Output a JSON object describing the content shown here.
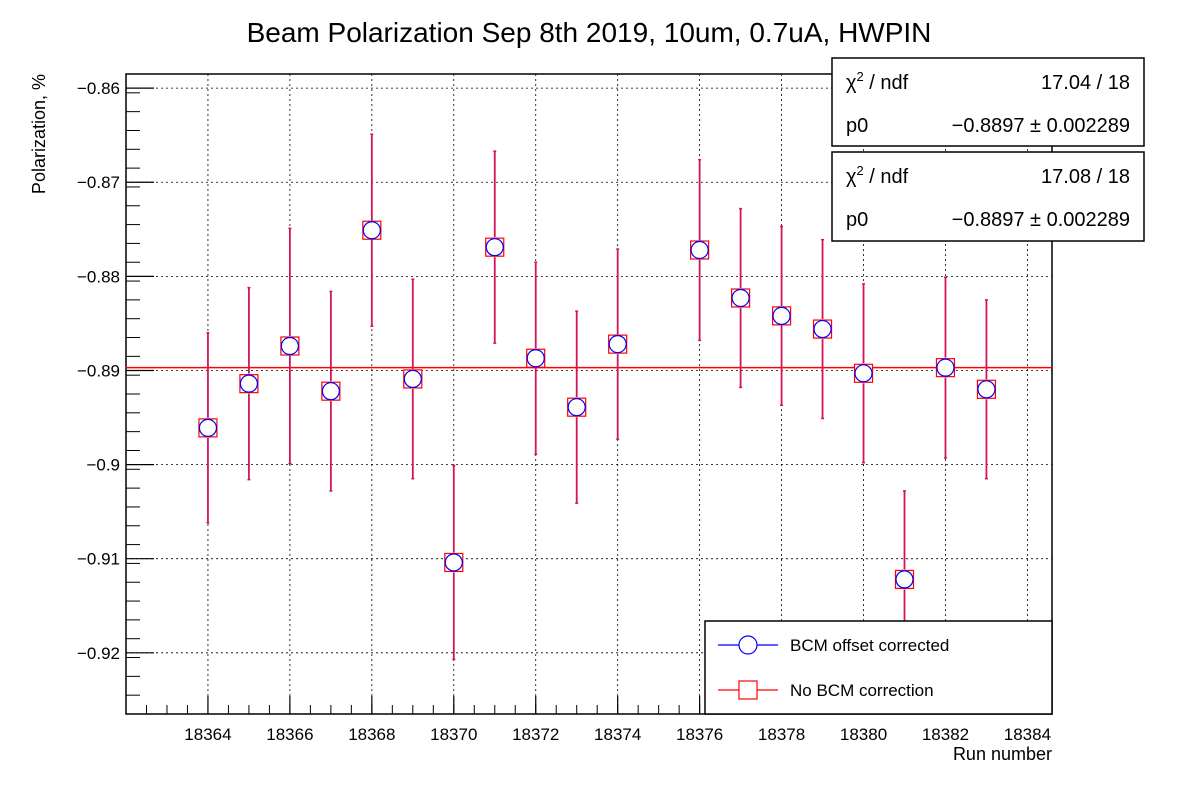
{
  "chart_data": {
    "type": "scatter",
    "title": "Beam Polarization Sep 8th 2019, 10um, 0.7uA, HWPIN",
    "xlabel": "Run number",
    "ylabel": "Polarization, %",
    "xlim": [
      18362,
      18384.6
    ],
    "ylim": [
      -0.9265,
      -0.8585
    ],
    "x_ticks": [
      18364,
      18366,
      18368,
      18370,
      18372,
      18374,
      18376,
      18378,
      18380,
      18382,
      18384
    ],
    "x_tick_labels": [
      "18364",
      "18366",
      "18368",
      "18370",
      "18372",
      "18374",
      "18376",
      "18378",
      "18380",
      "18382",
      "18384"
    ],
    "y_ticks": [
      -0.86,
      -0.87,
      -0.88,
      -0.89,
      -0.9,
      -0.91,
      -0.92
    ],
    "y_tick_labels": [
      "−0.86",
      "−0.87",
      "−0.88",
      "−0.89",
      "−0.9",
      "−0.91",
      "−0.92"
    ],
    "grid": true,
    "fit_value": -0.8897,
    "series": [
      {
        "name": "BCM offset corrected",
        "color": "#0000ff",
        "marker": "circle",
        "x": [
          18364,
          18365,
          18366,
          18367,
          18368,
          18369,
          18370,
          18371,
          18372,
          18373,
          18374,
          18376,
          18377,
          18378,
          18379,
          18380,
          18381,
          18382,
          18383
        ],
        "y": [
          -0.8961,
          -0.8914,
          -0.8874,
          -0.8922,
          -0.8751,
          -0.8909,
          -0.9104,
          -0.8769,
          -0.8887,
          -0.8939,
          -0.8872,
          -0.8772,
          -0.8823,
          -0.8842,
          -0.8856,
          -0.8903,
          -0.9122,
          -0.8897,
          -0.892
        ],
        "err": [
          0.0101,
          0.0102,
          0.0125,
          0.0106,
          0.0102,
          0.0106,
          0.0103,
          0.0102,
          0.0102,
          0.0102,
          0.0101,
          0.0096,
          0.0095,
          0.0095,
          0.0095,
          0.0095,
          0.0094,
          0.0096,
          0.0095
        ]
      },
      {
        "name": "No BCM correction",
        "color": "#ff0000",
        "marker": "square",
        "x": [
          18364,
          18365,
          18366,
          18367,
          18368,
          18369,
          18370,
          18371,
          18372,
          18373,
          18374,
          18376,
          18377,
          18378,
          18379,
          18380,
          18381,
          18382,
          18383
        ],
        "y": [
          -0.8961,
          -0.8914,
          -0.8874,
          -0.8922,
          -0.8751,
          -0.8909,
          -0.9104,
          -0.8769,
          -0.8887,
          -0.8939,
          -0.8872,
          -0.8772,
          -0.8823,
          -0.8842,
          -0.8856,
          -0.8903,
          -0.9122,
          -0.8897,
          -0.892
        ],
        "err": [
          0.0101,
          0.0102,
          0.0125,
          0.0106,
          0.0102,
          0.0106,
          0.0103,
          0.0102,
          0.0102,
          0.0102,
          0.0101,
          0.0096,
          0.0095,
          0.0095,
          0.0095,
          0.0095,
          0.0094,
          0.0096,
          0.0095
        ]
      }
    ],
    "stat_boxes": [
      {
        "chi_label": "χ",
        "chi_sup": "2",
        "ndf_label": " / ndf",
        "chi_value": "17.04 / 18",
        "p0_label": "p0",
        "p0_value": "−0.8897 ± 0.002289"
      },
      {
        "chi_label": "χ",
        "chi_sup": "2",
        "ndf_label": " / ndf",
        "chi_value": "17.08 / 18",
        "p0_label": "p0",
        "p0_value": "−0.8897 ± 0.002289"
      }
    ],
    "legend": {
      "position": "bottom-right",
      "entries": [
        "BCM offset corrected",
        "No BCM correction"
      ]
    },
    "colors": {
      "fit_line": "#ff0000",
      "error_bars": "#d4145a",
      "grid": "#000000"
    }
  }
}
